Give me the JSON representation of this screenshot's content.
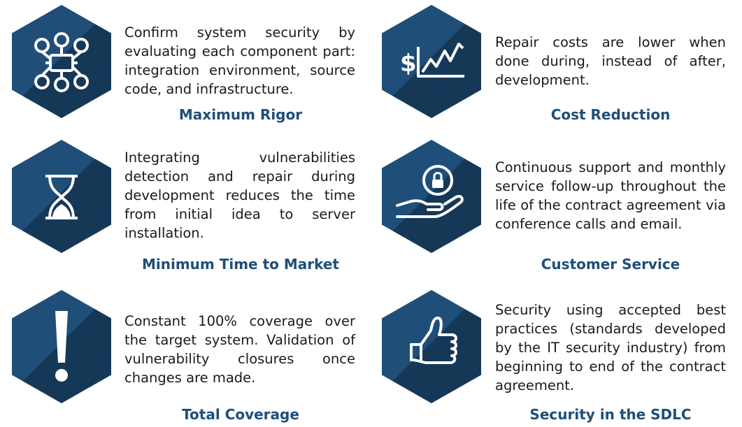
{
  "colors": {
    "hex_fill": "#1f4e79",
    "title": "#1f4e79",
    "text": "#1a1a1a"
  },
  "items": [
    {
      "icon": "network-nodes-icon",
      "description": "Confirm system security by evaluating each component part: integration environment, source code, and infrastructure.",
      "title": "Maximum Rigor"
    },
    {
      "icon": "dollar-chart-icon",
      "description": "Repair costs are lower when done during, instead of after, development.",
      "title": "Cost Reduction"
    },
    {
      "icon": "hourglass-icon",
      "description": "Integrating vulnerabilities detection and repair during development reduces the time from initial idea to server installation.",
      "title": "Minimum Time to Market"
    },
    {
      "icon": "hand-lock-icon",
      "description": "Continuous support and monthly service follow-up throughout the life of the contract agreement via conference calls and email.",
      "title": "Customer Service"
    },
    {
      "icon": "exclamation-icon",
      "description": "Constant 100% coverage over the target system. Validation of vulnerability closures once changes are made.",
      "title": "Total Coverage"
    },
    {
      "icon": "thumbs-up-icon",
      "description": "Security using accepted best practices (standards developed by the IT security industry) from beginning to end of the contract agreement.",
      "title": "Security in the SDLC"
    }
  ]
}
